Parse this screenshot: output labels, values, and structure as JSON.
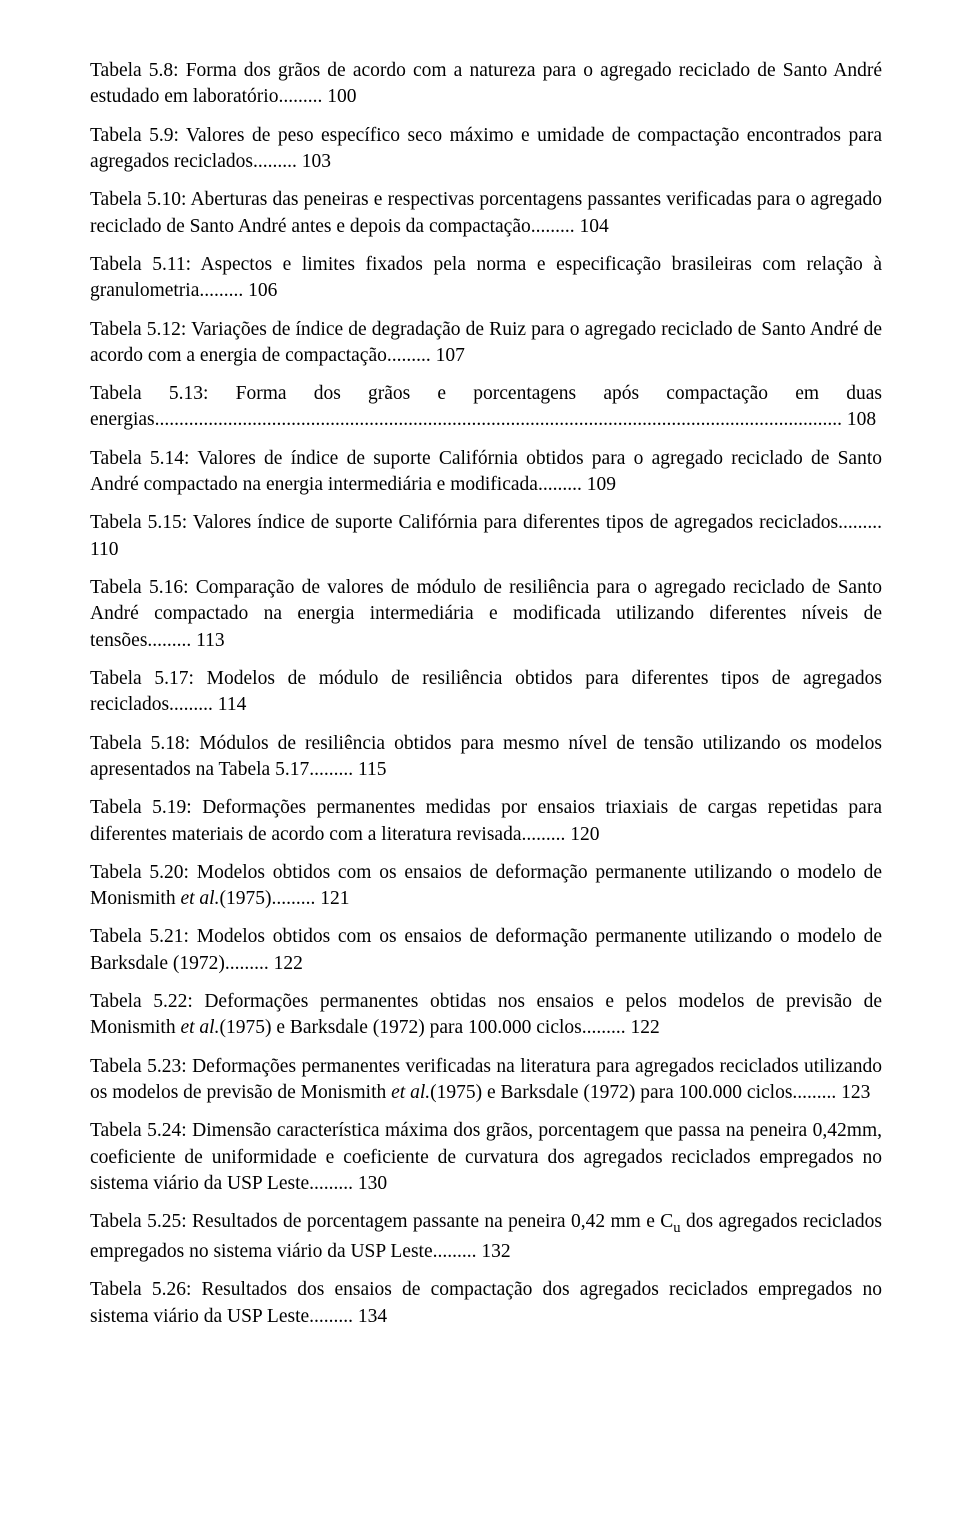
{
  "entries": [
    {
      "text_pre": "Tabela 5.8: Forma dos grãos de acordo com a natureza para o agregado reciclado de Santo André estudado em laboratório",
      "page": "100"
    },
    {
      "text_pre": "Tabela 5.9: Valores de peso específico seco máximo e umidade de compactação encontrados para agregados reciclados",
      "page": "103"
    },
    {
      "text_pre": "Tabela 5.10: Aberturas das peneiras e respectivas porcentagens passantes verificadas para o agregado reciclado de Santo André antes e depois da compactação",
      "page": "104"
    },
    {
      "text_pre": "Tabela 5.11: Aspectos e limites fixados pela norma e especificação brasileiras com relação à granulometria",
      "page": "106"
    },
    {
      "text_pre": "Tabela 5.12: Variações de índice de degradação de Ruiz para o agregado reciclado de Santo André de acordo com a energia de compactação",
      "page": "107"
    },
    {
      "text_pre": "Tabela 5.13: Forma dos grãos e porcentagens após compactação em duas energias",
      "long_leader": true,
      "page": "108"
    },
    {
      "text_pre": "Tabela 5.14: Valores de índice de suporte Califórnia obtidos para o agregado reciclado de Santo André compactado na energia intermediária e modificada",
      "page": "109"
    },
    {
      "text_pre": "Tabela 5.15: Valores índice de suporte Califórnia para diferentes tipos de agregados reciclados",
      "page": "110"
    },
    {
      "text_pre": "Tabela 5.16: Comparação de valores de módulo de resiliência para o agregado reciclado de Santo André compactado na energia intermediária e modificada utilizando diferentes níveis de tensões",
      "page": "113"
    },
    {
      "text_pre": "Tabela 5.17: Modelos de módulo de resiliência obtidos para diferentes tipos de agregados reciclados",
      "page": "114"
    },
    {
      "text_pre": "Tabela 5.18: Módulos de resiliência obtidos para mesmo nível de tensão utilizando os modelos apresentados na Tabela 5.17",
      "page": "115"
    },
    {
      "text_pre": "Tabela 5.19: Deformações permanentes medidas por ensaios triaxiais de cargas repetidas para diferentes materiais de acordo com a literatura revisada",
      "page": "120"
    },
    {
      "text_pre": "Tabela 5.20: Modelos obtidos com os ensaios de deformação permanente utilizando o modelo de Monismith ",
      "italic": "et al.",
      "text_post": "(1975)",
      "page": "121"
    },
    {
      "text_pre": "Tabela 5.21: Modelos obtidos com os ensaios de deformação permanente utilizando o modelo de Barksdale (1972)",
      "page": "122"
    },
    {
      "text_pre": "Tabela 5.22: Deformações permanentes obtidas nos ensaios e pelos modelos de previsão de Monismith ",
      "italic": "et al.",
      "text_post": "(1975) e Barksdale (1972) para 100.000 ciclos",
      "page": "122"
    },
    {
      "text_pre": "Tabela 5.23: Deformações permanentes verificadas na literatura para agregados reciclados utilizando os modelos de previsão de Monismith ",
      "italic": "et al.",
      "text_post": "(1975) e Barksdale (1972) para 100.000 ciclos",
      "page": "123"
    },
    {
      "text_pre": "Tabela 5.24: Dimensão característica máxima dos grãos, porcentagem que passa na peneira 0,42mm, coeficiente de uniformidade e coeficiente de curvatura dos agregados reciclados empregados no sistema viário da USP Leste",
      "page": "130"
    },
    {
      "text_pre": "Tabela 5.25: Resultados de porcentagem passante na peneira 0,42 mm e C",
      "sub": "u",
      "text_post": " dos agregados reciclados empregados no sistema viário da USP Leste",
      "page": "132"
    },
    {
      "text_pre": "Tabela 5.26: Resultados dos ensaios de compactação dos agregados reciclados empregados no sistema viário da USP Leste",
      "page": "134"
    }
  ],
  "leader_short": "......... ",
  "leader_long": "............................................................................................................................................. "
}
